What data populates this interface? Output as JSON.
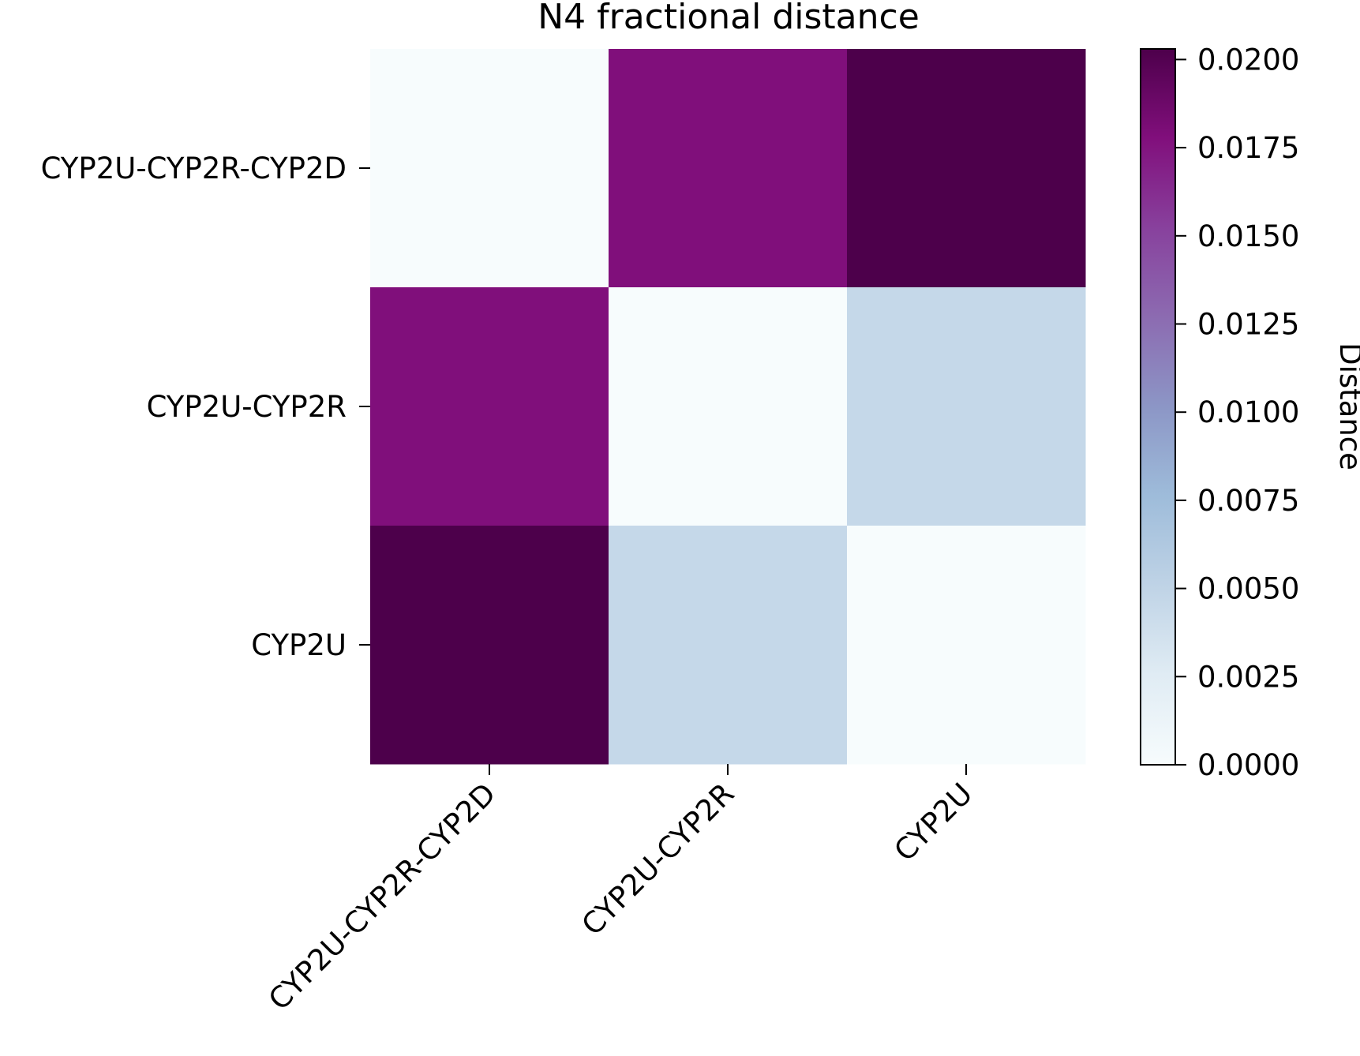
{
  "chart_data": {
    "type": "heatmap",
    "title": "N4 fractional distance",
    "rows": [
      "CYP2U-CYP2R-CYP2D",
      "CYP2U-CYP2R",
      "CYP2U"
    ],
    "columns": [
      "CYP2U-CYP2R-CYP2D",
      "CYP2U-CYP2R",
      "CYP2U"
    ],
    "values": [
      [
        0.0,
        0.0178,
        0.0203
      ],
      [
        0.0178,
        0.0,
        0.0046
      ],
      [
        0.0203,
        0.0046,
        0.0
      ]
    ],
    "colorbar": {
      "label": "Distance",
      "range": [
        0.0,
        0.0203
      ],
      "ticks": [
        0.0,
        0.0025,
        0.005,
        0.0075,
        0.01,
        0.0125,
        0.015,
        0.0175,
        0.02
      ],
      "tick_labels": [
        "0.0000",
        "0.0025",
        "0.0050",
        "0.0075",
        "0.0100",
        "0.0125",
        "0.0150",
        "0.0175",
        "0.0200"
      ],
      "colormap": "BuPu",
      "colormap_stops": [
        "#f7fcfd",
        "#e0ecf4",
        "#bfd3e6",
        "#9ebcda",
        "#8c96c6",
        "#8c6bb1",
        "#88419d",
        "#810f7c",
        "#4d004b"
      ]
    },
    "xtick_rotation_deg": 45
  }
}
